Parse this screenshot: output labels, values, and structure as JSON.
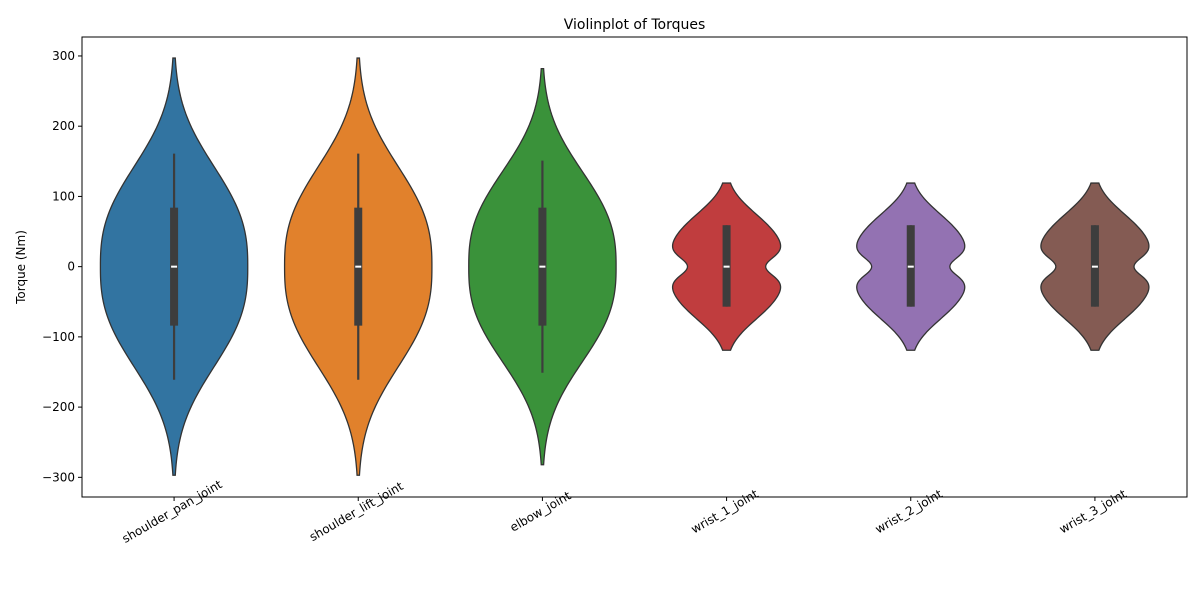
{
  "chart_data": {
    "type": "violin",
    "title": "Violinplot of Torques",
    "xlabel": "",
    "ylabel": "Torque (Nm)",
    "ylim": [
      -328,
      327
    ],
    "yticks": [
      -300,
      -200,
      -100,
      0,
      100,
      200,
      300
    ],
    "ytick_labels": [
      "−300",
      "−200",
      "−100",
      "0",
      "100",
      "200",
      "300"
    ],
    "xtick_rotation_deg": 30,
    "grid": false,
    "legend": "none",
    "categories": [
      "shoulder_pan_joint",
      "shoulder_lift_joint",
      "elbow_joint",
      "wrist_1_joint",
      "wrist_2_joint",
      "wrist_3_joint"
    ],
    "colors": [
      "#3274a1",
      "#e1812c",
      "#3a923a",
      "#c03d3e",
      "#9372b2",
      "#845b53"
    ],
    "edge_color": "#333333",
    "series": [
      {
        "category": "shoulder_pan_joint",
        "min": -297,
        "q1": -84,
        "median": 0,
        "q3": 84,
        "max": 297,
        "whisker_low": -161,
        "whisker_high": 161,
        "shape": "unimodal"
      },
      {
        "category": "shoulder_lift_joint",
        "min": -297,
        "q1": -84,
        "median": 0,
        "q3": 84,
        "max": 297,
        "whisker_low": -161,
        "whisker_high": 161,
        "shape": "unimodal"
      },
      {
        "category": "elbow_joint",
        "min": -282,
        "q1": -84,
        "median": 0,
        "q3": 84,
        "max": 282,
        "whisker_low": -151,
        "whisker_high": 151,
        "shape": "unimodal"
      },
      {
        "category": "wrist_1_joint",
        "min": -119,
        "q1": -57,
        "median": 0,
        "q3": 59,
        "max": 119,
        "whisker_low": -57,
        "whisker_high": 59,
        "shape": "bimodal"
      },
      {
        "category": "wrist_2_joint",
        "min": -119,
        "q1": -57,
        "median": 0,
        "q3": 59,
        "max": 119,
        "whisker_low": -57,
        "whisker_high": 59,
        "shape": "bimodal"
      },
      {
        "category": "wrist_3_joint",
        "min": -119,
        "q1": -57,
        "median": 0,
        "q3": 59,
        "max": 119,
        "whisker_low": -57,
        "whisker_high": 59,
        "shape": "bimodal"
      }
    ]
  }
}
